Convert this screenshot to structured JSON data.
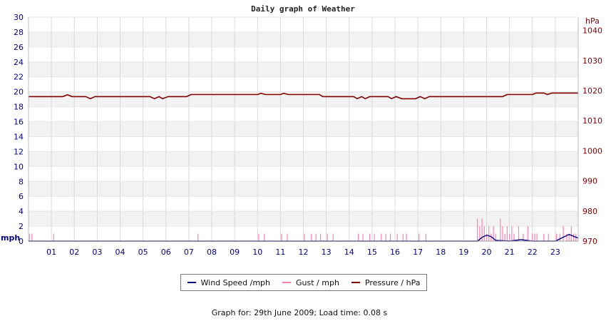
{
  "chart_data": {
    "type": "line",
    "title": "Daily graph of Weather",
    "left_axis": {
      "unit_label": "mph",
      "min": 0,
      "max": 30,
      "step": 2,
      "tick_labels": [
        "0",
        "2",
        "4",
        "6",
        "8",
        "10",
        "12",
        "14",
        "16",
        "18",
        "20",
        "22",
        "24",
        "26",
        "28",
        "30"
      ],
      "color": "#000080"
    },
    "right_axis": {
      "unit_label": "hPa",
      "min": 970,
      "max": 1044.4,
      "tick_labels": [
        "970",
        "980",
        "990",
        "1000",
        "1010",
        "1020",
        "1030",
        "1040"
      ],
      "color": "#800000"
    },
    "x_axis": {
      "min": 0,
      "max": 24,
      "tick_labels": [
        "01",
        "02",
        "03",
        "04",
        "05",
        "06",
        "07",
        "08",
        "09",
        "10",
        "11",
        "12",
        "13",
        "14",
        "15",
        "16",
        "17",
        "18",
        "19",
        "20",
        "21",
        "22",
        "23"
      ]
    },
    "grid": true,
    "legend_placement": "bottom",
    "series": [
      {
        "name": "Wind Speed /mph",
        "color": "#000080",
        "axis": "left",
        "points": [
          [
            0,
            0
          ],
          [
            19.6,
            0
          ],
          [
            19.8,
            0.5
          ],
          [
            20.0,
            0.8
          ],
          [
            20.2,
            0.6
          ],
          [
            20.4,
            0.1
          ],
          [
            21.0,
            0.0
          ],
          [
            21.5,
            0.2
          ],
          [
            22.0,
            0.0
          ],
          [
            22.5,
            0.0
          ],
          [
            23.0,
            0.0
          ],
          [
            23.4,
            0.6
          ],
          [
            23.6,
            0.9
          ],
          [
            24.0,
            0.4
          ]
        ]
      },
      {
        "name": "Gust / mph",
        "color": "#ff80b0",
        "axis": "left",
        "spikes": [
          [
            0.05,
            1
          ],
          [
            0.15,
            1
          ],
          [
            1.1,
            1
          ],
          [
            7.4,
            1
          ],
          [
            10.05,
            1
          ],
          [
            10.3,
            1
          ],
          [
            11.05,
            1
          ],
          [
            11.3,
            1
          ],
          [
            12.05,
            1
          ],
          [
            12.35,
            1
          ],
          [
            12.55,
            1
          ],
          [
            12.75,
            1
          ],
          [
            13.05,
            1
          ],
          [
            13.3,
            1
          ],
          [
            14.4,
            1
          ],
          [
            14.6,
            1
          ],
          [
            14.9,
            1
          ],
          [
            15.1,
            1
          ],
          [
            15.4,
            1
          ],
          [
            15.6,
            1
          ],
          [
            15.8,
            1
          ],
          [
            16.1,
            1
          ],
          [
            16.35,
            1
          ],
          [
            16.5,
            1
          ],
          [
            17.05,
            1
          ],
          [
            17.35,
            1
          ],
          [
            19.6,
            3
          ],
          [
            19.7,
            2
          ],
          [
            19.8,
            3
          ],
          [
            19.9,
            2
          ],
          [
            20.0,
            1
          ],
          [
            20.1,
            2
          ],
          [
            20.2,
            1
          ],
          [
            20.3,
            2
          ],
          [
            20.4,
            1
          ],
          [
            20.6,
            3
          ],
          [
            20.7,
            2
          ],
          [
            20.8,
            1
          ],
          [
            20.9,
            2
          ],
          [
            21.0,
            1
          ],
          [
            21.1,
            2
          ],
          [
            21.2,
            1
          ],
          [
            21.4,
            2
          ],
          [
            21.6,
            1
          ],
          [
            21.8,
            2
          ],
          [
            22.0,
            1
          ],
          [
            22.1,
            1
          ],
          [
            22.2,
            1
          ],
          [
            22.5,
            1
          ],
          [
            22.7,
            1
          ],
          [
            23.05,
            1
          ],
          [
            23.2,
            1
          ],
          [
            23.35,
            2
          ],
          [
            23.5,
            1
          ],
          [
            23.6,
            1
          ],
          [
            23.7,
            2
          ],
          [
            23.8,
            1
          ],
          [
            23.9,
            1
          ]
        ]
      },
      {
        "name": "Pressure / hPa",
        "color": "#800000",
        "axis": "right",
        "points": [
          [
            0,
            1018
          ],
          [
            1.5,
            1018
          ],
          [
            1.7,
            1018.6
          ],
          [
            1.9,
            1018
          ],
          [
            2.5,
            1018
          ],
          [
            2.7,
            1017.3
          ],
          [
            2.9,
            1018
          ],
          [
            5.3,
            1018
          ],
          [
            5.5,
            1017.3
          ],
          [
            5.7,
            1018
          ],
          [
            5.85,
            1017.3
          ],
          [
            6.1,
            1018
          ],
          [
            6.9,
            1018
          ],
          [
            7.1,
            1018.7
          ],
          [
            10.0,
            1018.7
          ],
          [
            10.15,
            1019.1
          ],
          [
            10.35,
            1018.7
          ],
          [
            11.0,
            1018.7
          ],
          [
            11.15,
            1019.1
          ],
          [
            11.35,
            1018.7
          ],
          [
            12.7,
            1018.7
          ],
          [
            12.85,
            1018
          ],
          [
            14.2,
            1018
          ],
          [
            14.35,
            1017.3
          ],
          [
            14.55,
            1018
          ],
          [
            14.7,
            1017.3
          ],
          [
            14.9,
            1018
          ],
          [
            15.7,
            1018
          ],
          [
            15.85,
            1017.3
          ],
          [
            16.05,
            1018
          ],
          [
            16.3,
            1017.3
          ],
          [
            16.9,
            1017.3
          ],
          [
            17.1,
            1018
          ],
          [
            17.3,
            1017.3
          ],
          [
            17.5,
            1018
          ],
          [
            20.7,
            1018
          ],
          [
            20.9,
            1018.7
          ],
          [
            22.0,
            1018.7
          ],
          [
            22.15,
            1019.2
          ],
          [
            22.5,
            1019.2
          ],
          [
            22.65,
            1018.7
          ],
          [
            22.85,
            1019.2
          ],
          [
            24.0,
            1019.2
          ]
        ]
      }
    ]
  },
  "footer": {
    "text": "Graph for: 29th June 2009; Load time: 0.08 s"
  }
}
